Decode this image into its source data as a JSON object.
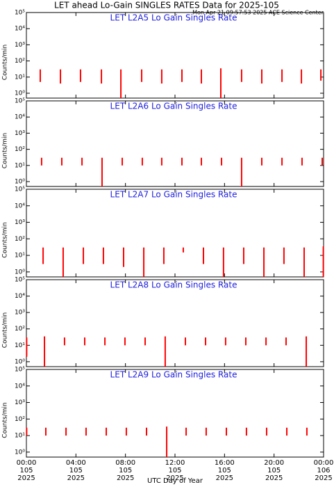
{
  "header": {
    "title": "LET ahead Lo-Gain SINGLES RATES Data for 2025-105",
    "timestamp": "Mon Apr 21 09:57:53 2025 ACE Science Center",
    "xlabel": "UTC Day of Year"
  },
  "chart_data": [
    {
      "type": "spike",
      "title": "LET L2A5 Lo Gain Singles Rate",
      "title_color": "#2020e0",
      "ylabel": "Counts/min",
      "color": "#ff0000",
      "log_y": true,
      "xlim": [
        0,
        24
      ],
      "xticks": [
        0,
        4,
        8,
        12,
        16,
        20,
        24
      ],
      "ylim": [
        0.5,
        100000
      ],
      "yticks": [
        {
          "value": 1,
          "label": "10⁰"
        },
        {
          "value": 10,
          "label": "10¹"
        },
        {
          "value": 100,
          "label": "10²"
        },
        {
          "value": 1000,
          "label": "10³"
        },
        {
          "value": 10000,
          "label": "10⁴"
        },
        {
          "value": 100000,
          "label": "10⁵"
        }
      ],
      "x": [
        1.12,
        2.75,
        4.37,
        6.06,
        7.63,
        9.31,
        10.93,
        12.56,
        14.13,
        15.7,
        17.38,
        19.01,
        20.64,
        22.21,
        23.78
      ],
      "lows": [
        5,
        4,
        5,
        4,
        0.5,
        5,
        4,
        5,
        4,
        0.5,
        5,
        4,
        5,
        4,
        6
      ],
      "highs": [
        30,
        30,
        30,
        30,
        30,
        30,
        30,
        30,
        30,
        35,
        30,
        30,
        30,
        30,
        30
      ]
    },
    {
      "type": "spike",
      "title": "LET L2A6 Lo Gain Singles Rate",
      "title_color": "#2020e0",
      "ylabel": "Counts/min",
      "color": "#ff0000",
      "log_y": true,
      "xlim": [
        0,
        24
      ],
      "xticks": [
        0,
        4,
        8,
        12,
        16,
        20,
        24
      ],
      "ylim": [
        0.5,
        100000
      ],
      "yticks": [
        {
          "value": 1,
          "label": "10⁰"
        },
        {
          "value": 10,
          "label": "10¹"
        },
        {
          "value": 100,
          "label": "10²"
        },
        {
          "value": 1000,
          "label": "10³"
        },
        {
          "value": 10000,
          "label": "10⁴"
        },
        {
          "value": 100000,
          "label": "10⁵"
        }
      ],
      "x": [
        1.23,
        2.86,
        4.49,
        6.11,
        7.74,
        9.36,
        10.93,
        12.56,
        14.13,
        15.76,
        17.38,
        19.01,
        20.64,
        22.26,
        23.89
      ],
      "lows": [
        10,
        10,
        10,
        0.5,
        10,
        10,
        10,
        10,
        10,
        10,
        0.5,
        10,
        10,
        10,
        10
      ],
      "highs": [
        30,
        30,
        30,
        30,
        30,
        30,
        30,
        30,
        30,
        30,
        30,
        30,
        30,
        30,
        30
      ]
    },
    {
      "type": "spike",
      "title": "LET L2A7 Lo Gain Singles Rate",
      "title_color": "#2020e0",
      "ylabel": "Counts/min",
      "color": "#ff0000",
      "log_y": true,
      "xlim": [
        0,
        24
      ],
      "xticks": [
        0,
        4,
        8,
        12,
        16,
        20,
        24
      ],
      "ylim": [
        0.5,
        100000
      ],
      "yticks": [
        {
          "value": 1,
          "label": "10⁰"
        },
        {
          "value": 10,
          "label": "10¹"
        },
        {
          "value": 100,
          "label": "10²"
        },
        {
          "value": 1000,
          "label": "10³"
        },
        {
          "value": 10000,
          "label": "10⁴"
        },
        {
          "value": 100000,
          "label": "10⁵"
        }
      ],
      "x": [
        1.35,
        2.97,
        4.6,
        6.22,
        7.85,
        9.48,
        11.1,
        12.67,
        14.3,
        15.92,
        17.55,
        19.18,
        20.8,
        22.43,
        23.98
      ],
      "lows": [
        3,
        0.5,
        3,
        3,
        2,
        0.5,
        3,
        15,
        3,
        0.5,
        3,
        0.5,
        3,
        0.5,
        0.5
      ],
      "highs": [
        30,
        30,
        30,
        30,
        30,
        30,
        30,
        30,
        30,
        30,
        30,
        30,
        30,
        30,
        35
      ]
    },
    {
      "type": "spike",
      "title": "LET L2A8 Lo Gain Singles Rate",
      "title_color": "#2020e0",
      "ylabel": "Counts/min",
      "color": "#ff0000",
      "log_y": true,
      "xlim": [
        0,
        24
      ],
      "xticks": [
        0,
        4,
        8,
        12,
        16,
        20,
        24
      ],
      "ylim": [
        0.5,
        100000
      ],
      "yticks": [
        {
          "value": 1,
          "label": "10⁰"
        },
        {
          "value": 10,
          "label": "10¹"
        },
        {
          "value": 100,
          "label": "10²"
        },
        {
          "value": 1000,
          "label": "10³"
        },
        {
          "value": 10000,
          "label": "10⁴"
        },
        {
          "value": 100000,
          "label": "10⁵"
        }
      ],
      "x": [
        0.02,
        1.46,
        3.08,
        4.71,
        6.34,
        7.96,
        9.59,
        11.21,
        12.84,
        14.47,
        16.09,
        17.72,
        19.35,
        20.97,
        22.6
      ],
      "lows": [
        2,
        0.5,
        10,
        10,
        10,
        10,
        10,
        0.5,
        10,
        10,
        10,
        10,
        10,
        10,
        0.5
      ],
      "highs": [
        30,
        35,
        30,
        30,
        30,
        30,
        30,
        35,
        30,
        30,
        30,
        30,
        30,
        30,
        35
      ]
    },
    {
      "type": "spike",
      "title": "LET L2A9 Lo Gain Singles Rate",
      "title_color": "#2020e0",
      "ylabel": "Counts/min",
      "color": "#ff0000",
      "log_y": true,
      "xlim": [
        0,
        24
      ],
      "xticks": [
        {
          "value": 0,
          "label": "00:00"
        },
        {
          "value": 4,
          "label": "04:00"
        },
        {
          "value": 8,
          "label": "08:00"
        },
        {
          "value": 12,
          "label": "12:00"
        },
        {
          "value": 16,
          "label": "16:00"
        },
        {
          "value": 20,
          "label": "20:00"
        },
        {
          "value": 24,
          "label": "00:00"
        }
      ],
      "xtick_days": [
        "105",
        "105",
        "105",
        "105",
        "105",
        "105",
        "106"
      ],
      "xtick_years": [
        "2025",
        "2025",
        "2025",
        "2025",
        "2025",
        "2025",
        "2025"
      ],
      "ylim": [
        0.5,
        100000
      ],
      "yticks": [
        {
          "value": 1,
          "label": "10⁰"
        },
        {
          "value": 10,
          "label": "10¹"
        },
        {
          "value": 100,
          "label": "10²"
        },
        {
          "value": 1000,
          "label": "10³"
        },
        {
          "value": 10000,
          "label": "10⁴"
        },
        {
          "value": 100000,
          "label": "10⁵"
        }
      ],
      "x": [
        0.02,
        1.57,
        3.2,
        4.82,
        6.45,
        8.07,
        9.7,
        11.33,
        12.9,
        14.52,
        16.15,
        17.77,
        19.4,
        21.03,
        22.65
      ],
      "lows": [
        10,
        10,
        10,
        10,
        10,
        10,
        10,
        0.5,
        10,
        10,
        10,
        10,
        10,
        10,
        10
      ],
      "highs": [
        30,
        30,
        30,
        30,
        30,
        30,
        30,
        35,
        30,
        30,
        30,
        30,
        30,
        30,
        30
      ]
    }
  ]
}
